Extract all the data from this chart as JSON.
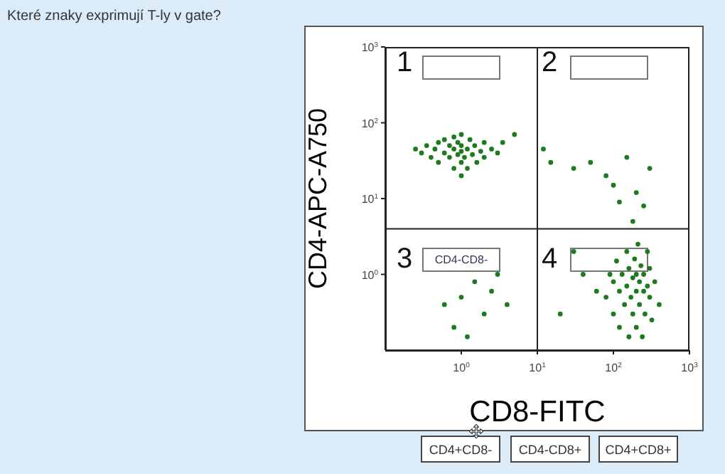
{
  "chart_data": {
    "type": "scatter",
    "title": "Které znaky exprimují T-ly v gate?",
    "xlabel": "CD8-FITC",
    "ylabel": "CD4-APC-A750",
    "log": "xy",
    "xlim": [
      0.1,
      1000
    ],
    "ylim": [
      0.1,
      1000
    ],
    "xticks": [
      {
        "value": 1,
        "label": "10$^{0}$"
      },
      {
        "value": 10,
        "label": "10$^{1}$"
      },
      {
        "value": 100,
        "label": "10$^{2}$"
      },
      {
        "value": 1000,
        "label": "10$^{3}$"
      }
    ],
    "yticks": [
      {
        "value": 1,
        "label": "10$^{0}$"
      },
      {
        "value": 10,
        "label": "10$^{1}$"
      },
      {
        "value": 100,
        "label": "10$^{2}$"
      },
      {
        "value": 1000,
        "label": "10$^{3}$"
      }
    ],
    "marker": "circle",
    "ref_lines": [
      {
        "axis": "x",
        "value": 10,
        "color": "#222222"
      },
      {
        "axis": "y",
        "value": 4,
        "color": "#222222"
      }
    ],
    "annotations": [
      "1",
      "2",
      "3",
      "4",
      "CD4-CD8-",
      "CD4+CD8-",
      "CD4-CD8+",
      "CD4+CD8+"
    ],
    "series": [
      {
        "color": "#1e7a1e",
        "x": [
          0.3,
          0.35,
          0.4,
          0.45,
          0.5,
          0.5,
          0.6,
          0.6,
          0.7,
          0.7,
          0.8,
          0.8,
          0.8,
          0.9,
          0.9,
          1,
          1,
          1,
          1,
          1.1,
          1.2,
          1.2,
          1.3,
          1.4,
          1.5,
          1.6,
          1.8,
          2,
          2,
          2.5,
          3,
          0.25,
          1,
          3.5,
          5,
          12,
          15,
          30,
          50,
          80,
          100,
          150,
          200,
          250,
          300,
          180,
          120,
          1,
          1.5,
          2,
          3,
          0.8,
          1.2,
          2.5,
          4,
          0.6,
          80,
          90,
          100,
          100,
          110,
          120,
          120,
          130,
          140,
          150,
          150,
          160,
          160,
          170,
          180,
          180,
          190,
          200,
          200,
          200,
          210,
          220,
          220,
          230,
          240,
          250,
          250,
          260,
          280,
          280,
          300,
          300,
          320,
          350,
          400,
          60,
          40,
          20,
          30
        ],
        "values": [
          40,
          50,
          35,
          45,
          30,
          55,
          40,
          60,
          35,
          50,
          25,
          45,
          65,
          38,
          55,
          30,
          42,
          50,
          70,
          35,
          45,
          25,
          60,
          38,
          50,
          30,
          42,
          55,
          35,
          45,
          40,
          45,
          20,
          55,
          70,
          45,
          30,
          25,
          30,
          20,
          15,
          35,
          12,
          8,
          25,
          5,
          9,
          0.5,
          0.8,
          0.3,
          1,
          0.2,
          0.15,
          0.6,
          0.4,
          0.4,
          0.5,
          1,
          0.3,
          0.8,
          1.5,
          0.2,
          0.6,
          1,
          0.4,
          2,
          0.7,
          0.15,
          1.2,
          0.5,
          0.3,
          0.9,
          1.6,
          0.6,
          0.2,
          1,
          2.5,
          0.4,
          0.8,
          1.3,
          0.15,
          0.6,
          1,
          0.3,
          2,
          0.7,
          0.5,
          1.2,
          0.25,
          0.8,
          0.4,
          0.6,
          1,
          0.3,
          2
        ]
      }
    ]
  }
}
